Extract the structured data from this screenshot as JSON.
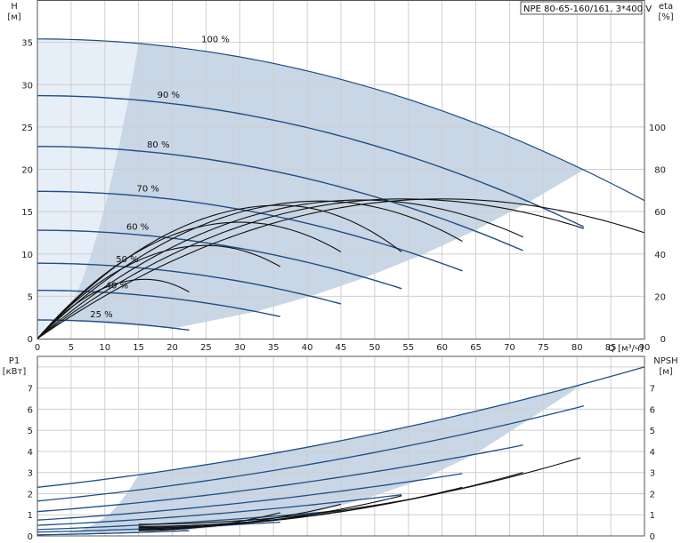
{
  "chart_data": [
    {
      "type": "line",
      "title": "NPE 80-65-160/161, 3*400 V",
      "xlabel": "Q [м³/ч]",
      "ylabel": "H",
      "ylabel_unit": "[м]",
      "y2label": "eta",
      "y2label_unit": "[%]",
      "xlim": [
        0,
        90
      ],
      "ylim": [
        0,
        40
      ],
      "y2lim": [
        0,
        160
      ],
      "x_ticks": [
        0,
        5,
        10,
        15,
        20,
        25,
        30,
        35,
        40,
        45,
        50,
        55,
        60,
        65,
        70,
        75,
        80,
        85,
        90
      ],
      "y_ticks": [
        0,
        5,
        10,
        15,
        20,
        25,
        30,
        35
      ],
      "y2_ticks": [
        0,
        20,
        40,
        60,
        80,
        100
      ],
      "grid": true,
      "speed_curves": [
        {
          "name": "100 %",
          "h0": 35.4,
          "qmax": 90,
          "hend": 16.3
        },
        {
          "name": "90 %",
          "h0": 28.7,
          "qmax": 81,
          "hend": 13.2
        },
        {
          "name": "80 %",
          "h0": 22.7,
          "qmax": 72,
          "hend": 10.4
        },
        {
          "name": "70 %",
          "h0": 17.4,
          "qmax": 63,
          "hend": 8.0
        },
        {
          "name": "60 %",
          "h0": 12.8,
          "qmax": 54,
          "hend": 5.9
        },
        {
          "name": "50 %",
          "h0": 8.9,
          "qmax": 45,
          "hend": 4.1
        },
        {
          "name": "40 %",
          "h0": 5.7,
          "qmax": 36,
          "hend": 2.6
        },
        {
          "name": "25 %",
          "h0": 2.2,
          "qmax": 22.5,
          "hend": 1.0
        }
      ],
      "eta_curves": [
        {
          "qmax": 90,
          "peak": 66,
          "qpeak": 60,
          "eend": 50
        },
        {
          "qmax": 81,
          "peak": 66,
          "qpeak": 54,
          "eend": 52
        },
        {
          "qmax": 72,
          "peak": 65.5,
          "qpeak": 48,
          "eend": 48
        },
        {
          "qmax": 63,
          "peak": 65,
          "qpeak": 42,
          "eend": 46
        },
        {
          "qmax": 54,
          "peak": 63,
          "qpeak": 36,
          "eend": 41
        },
        {
          "qmax": 45,
          "peak": 55,
          "qpeak": 30,
          "eend": 41
        },
        {
          "qmax": 36,
          "peak": 44,
          "qpeak": 25,
          "eend": 34
        },
        {
          "qmax": 22.5,
          "peak": 28,
          "qpeak": 16,
          "eend": 22
        }
      ],
      "operating_region_color": "#c8d6e5",
      "left_region_color": "#e6eef7",
      "curve_color": "#1e4f86"
    },
    {
      "type": "line",
      "xlabel": "",
      "ylabel": "P1",
      "ylabel_unit": "[кВт]",
      "y2label": "NPSH",
      "y2label_unit": "[м]",
      "xlim": [
        0,
        90
      ],
      "ylim": [
        0,
        8.5
      ],
      "y2lim": [
        0,
        8.5
      ],
      "y_ticks": [
        0,
        1,
        2,
        3,
        4,
        5,
        6,
        7
      ],
      "y2_ticks": [
        0,
        1,
        2,
        3,
        4,
        5,
        6,
        7
      ],
      "grid": true,
      "power_curves": [
        {
          "qmax": 90,
          "p0": 2.3,
          "pend": 8.0
        },
        {
          "qmax": 81,
          "p0": 1.65,
          "pend": 6.15
        },
        {
          "qmax": 72,
          "p0": 1.15,
          "pend": 4.3
        },
        {
          "qmax": 63,
          "p0": 0.75,
          "pend": 2.95
        },
        {
          "qmax": 54,
          "p0": 0.5,
          "pend": 1.95
        },
        {
          "qmax": 45,
          "p0": 0.3,
          "pend": 1.2
        },
        {
          "qmax": 36,
          "p0": 0.18,
          "pend": 0.65
        },
        {
          "qmax": 22.5,
          "p0": 0.05,
          "pend": 0.25
        }
      ],
      "npsh_curves": [
        {
          "qmin": 15,
          "qmax": 80.5,
          "n0": 0.55,
          "nend": 3.7
        },
        {
          "qmin": 15,
          "qmax": 72,
          "n0": 0.45,
          "nend": 3.0
        },
        {
          "qmin": 15,
          "qmax": 63,
          "n0": 0.4,
          "nend": 2.3
        },
        {
          "qmin": 15,
          "qmax": 54,
          "n0": 0.35,
          "nend": 1.9
        },
        {
          "qmin": 15,
          "qmax": 45,
          "n0": 0.3,
          "nend": 1.5
        },
        {
          "qmin": 15,
          "qmax": 36,
          "n0": 0.25,
          "nend": 1.1
        }
      ]
    }
  ]
}
